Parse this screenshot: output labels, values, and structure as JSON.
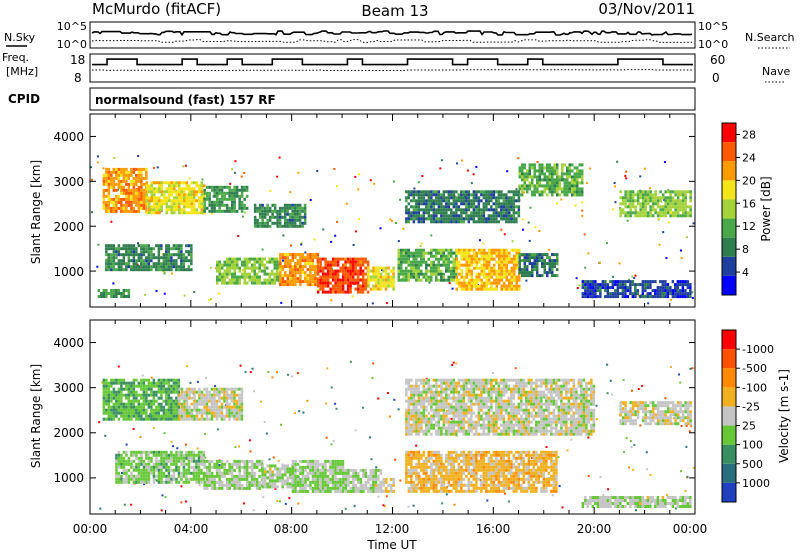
{
  "header": {
    "station": "McMurdo (fitACF)",
    "beam": "Beam 13",
    "date": "03/Nov/2011"
  },
  "noise_panel": {
    "left_label": "N.Sky",
    "left_ticks": [
      "10^5",
      "10^0"
    ],
    "right_label": "N.Search",
    "right_ticks": [
      "10^5",
      "10^0"
    ]
  },
  "freq_panel": {
    "left_label_line1": "Freq.",
    "left_label_line2": "[MHz]",
    "left_ticks": [
      "18",
      "8"
    ],
    "right_label": "Nave",
    "right_ticks": [
      "60",
      "0"
    ]
  },
  "cpid": {
    "label": "CPID",
    "value": "normalsound (fast) 157 RF"
  },
  "x_axis": {
    "label": "Time UT",
    "ticks": [
      "00:00",
      "04:00",
      "08:00",
      "12:00",
      "16:00",
      "20:00",
      "00:00"
    ]
  },
  "colors": {
    "power_scale": [
      "#0000ff",
      "#1e3f9e",
      "#2e7d4f",
      "#4aa84a",
      "#a4d23a",
      "#f4e41a",
      "#ff9a00",
      "#ff5a00",
      "#ff0000"
    ],
    "velocity_scale": [
      "#2040c0",
      "#2a6e7e",
      "#3a8f62",
      "#66c837",
      "#c4c4c4",
      "#f0b020",
      "#ff8a00",
      "#ff5000",
      "#ff0000"
    ]
  },
  "chart_data": [
    {
      "type": "heatmap",
      "title": "Power",
      "xlabel": "Time UT",
      "ylabel": "Slant Range [km]",
      "xlim": [
        0,
        24
      ],
      "ylim": [
        200,
        4500
      ],
      "yticks": [
        "1000",
        "2000",
        "3000",
        "4000"
      ],
      "colorbar": {
        "label": "Power [dB]",
        "ticks": [
          "4",
          "8",
          "12",
          "16",
          "20",
          "24",
          "28"
        ],
        "range": [
          0,
          30
        ]
      },
      "regions": [
        {
          "t0": 0.5,
          "t1": 2.2,
          "r0": 2300,
          "r1": 3300,
          "value": 22
        },
        {
          "t0": 2.2,
          "t1": 4.5,
          "r0": 2300,
          "r1": 3000,
          "value": 18
        },
        {
          "t0": 4.5,
          "t1": 6.2,
          "r0": 2300,
          "r1": 2900,
          "value": 10
        },
        {
          "t0": 6.5,
          "t1": 8.5,
          "r0": 2000,
          "r1": 2500,
          "value": 9
        },
        {
          "t0": 0.6,
          "t1": 4.0,
          "r0": 1000,
          "r1": 1600,
          "value": 9
        },
        {
          "t0": 5.0,
          "t1": 7.5,
          "r0": 700,
          "r1": 1300,
          "value": 14
        },
        {
          "t0": 7.5,
          "t1": 9.0,
          "r0": 700,
          "r1": 1400,
          "value": 22
        },
        {
          "t0": 9.0,
          "t1": 11.0,
          "r0": 550,
          "r1": 1300,
          "value": 26
        },
        {
          "t0": 11.0,
          "t1": 12.0,
          "r0": 600,
          "r1": 1100,
          "value": 18
        },
        {
          "t0": 12.2,
          "t1": 14.5,
          "r0": 800,
          "r1": 1500,
          "value": 12
        },
        {
          "t0": 14.5,
          "t1": 17.0,
          "r0": 600,
          "r1": 1500,
          "value": 20
        },
        {
          "t0": 17.0,
          "t1": 18.5,
          "r0": 900,
          "r1": 1400,
          "value": 8
        },
        {
          "t0": 12.5,
          "t1": 17.0,
          "r0": 2100,
          "r1": 2800,
          "value": 8
        },
        {
          "t0": 17.0,
          "t1": 19.5,
          "r0": 2700,
          "r1": 3400,
          "value": 12
        },
        {
          "t0": 21.0,
          "t1": 23.8,
          "r0": 2200,
          "r1": 2800,
          "value": 14
        },
        {
          "t0": 19.5,
          "t1": 23.8,
          "r0": 400,
          "r1": 800,
          "value": 5
        },
        {
          "t0": 0.3,
          "t1": 1.5,
          "r0": 400,
          "r1": 600,
          "value": 10
        }
      ]
    },
    {
      "type": "heatmap",
      "title": "Velocity",
      "xlabel": "Time UT",
      "ylabel": "Slant Range [km]",
      "xlim": [
        0,
        24
      ],
      "ylim": [
        200,
        4500
      ],
      "yticks": [
        "1000",
        "2000",
        "3000",
        "4000"
      ],
      "colorbar": {
        "label": "Velocity [m s-1]",
        "ticks": [
          "1000",
          "500",
          "100",
          "25",
          "-25",
          "-100",
          "-500",
          "-1000"
        ],
        "range": [
          1000,
          -1000
        ]
      },
      "regions": [
        {
          "t0": 0.5,
          "t1": 3.5,
          "r0": 2300,
          "r1": 3200,
          "value": 300
        },
        {
          "t0": 3.5,
          "t1": 6.0,
          "r0": 2300,
          "r1": 3000,
          "value": 0
        },
        {
          "t0": 1.0,
          "t1": 4.5,
          "r0": 900,
          "r1": 1600,
          "value": 200
        },
        {
          "t0": 4.5,
          "t1": 6.8,
          "r0": 800,
          "r1": 1400,
          "value": 150
        },
        {
          "t0": 6.8,
          "t1": 8.0,
          "r0": 800,
          "r1": 1300,
          "value": 60
        },
        {
          "t0": 8.0,
          "t1": 10.0,
          "r0": 700,
          "r1": 1400,
          "value": 150
        },
        {
          "t0": 10.0,
          "t1": 11.5,
          "r0": 700,
          "r1": 1200,
          "value": 60
        },
        {
          "t0": 11.5,
          "t1": 12.0,
          "r0": 700,
          "r1": 1000,
          "value": -60
        },
        {
          "t0": 12.5,
          "t1": 18.5,
          "r0": 700,
          "r1": 1600,
          "value": -200
        },
        {
          "t0": 12.5,
          "t1": 20.0,
          "r0": 2000,
          "r1": 3200,
          "value": 0
        },
        {
          "t0": 21.0,
          "t1": 23.8,
          "r0": 2200,
          "r1": 2700,
          "value": 0
        },
        {
          "t0": 19.5,
          "t1": 23.8,
          "r0": 350,
          "r1": 600,
          "value": 60
        }
      ]
    }
  ]
}
